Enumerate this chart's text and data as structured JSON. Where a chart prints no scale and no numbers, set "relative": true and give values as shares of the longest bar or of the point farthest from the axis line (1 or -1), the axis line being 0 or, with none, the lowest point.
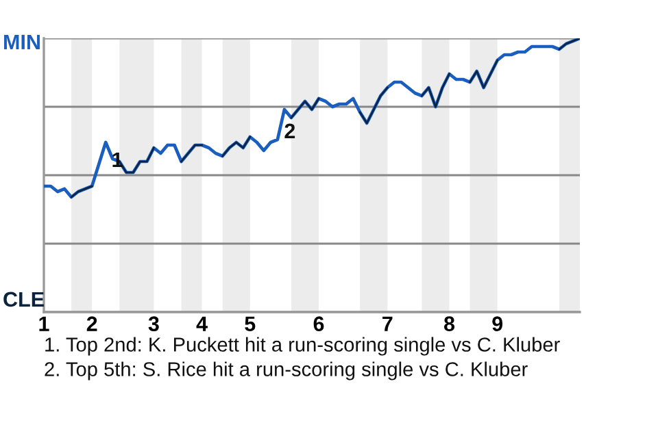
{
  "chart_data": {
    "type": "line",
    "relative": true,
    "categories": [
      "1",
      null,
      null,
      null,
      null,
      null,
      null,
      "2",
      null,
      null,
      null,
      null,
      null,
      null,
      null,
      null,
      "3",
      null,
      null,
      null,
      null,
      null,
      null,
      "4",
      null,
      null,
      null,
      null,
      null,
      null,
      "5",
      null,
      null,
      null,
      null,
      null,
      null,
      null,
      null,
      null,
      "6",
      null,
      null,
      null,
      null,
      null,
      null,
      null,
      null,
      null,
      "7",
      null,
      null,
      null,
      null,
      null,
      null,
      null,
      null,
      "8",
      null,
      null,
      null,
      null,
      null,
      null,
      "9",
      null,
      null,
      null,
      null,
      null,
      null,
      null,
      null,
      null,
      null,
      null,
      null
    ],
    "series": [
      {
        "color": "#1a5fc0",
        "values": [
          0.46,
          0.46,
          0.44,
          0.45,
          0.42,
          0.44,
          0.45,
          0.46,
          0.54,
          0.62,
          0.56,
          0.55,
          0.51,
          0.51,
          0.55,
          0.55,
          0.6,
          0.58,
          0.61,
          0.61,
          0.55,
          0.58,
          0.61,
          0.61,
          0.6,
          0.58,
          0.57,
          0.6,
          0.62,
          0.6,
          0.64,
          0.62,
          0.59,
          0.62,
          0.63,
          0.74,
          0.71,
          0.74,
          0.77,
          0.74,
          0.78,
          0.77,
          0.75,
          0.76,
          0.76,
          0.78,
          0.73,
          0.69,
          0.74,
          0.79,
          0.82,
          0.84,
          0.84,
          0.82,
          0.8,
          0.79,
          0.82,
          0.75,
          0.82,
          0.87,
          0.85,
          0.85,
          0.84,
          0.88,
          0.82,
          0.87,
          0.92,
          0.94,
          0.94,
          0.95,
          0.95,
          0.97,
          0.97,
          0.97,
          0.97,
          0.96,
          0.98,
          0.99,
          1.0
        ]
      },
      {
        "color": "#0c2340",
        "values": [
          null,
          null,
          null,
          null,
          0.42,
          0.44,
          0.45,
          0.46,
          null,
          null,
          null,
          0.55,
          0.51,
          0.51,
          0.55,
          0.55,
          0.6,
          null,
          null,
          null,
          0.55,
          0.58,
          0.61,
          0.61,
          null,
          null,
          0.57,
          0.6,
          0.62,
          0.6,
          0.64,
          null,
          null,
          null,
          null,
          null,
          0.71,
          0.74,
          0.77,
          0.74,
          0.78,
          null,
          null,
          null,
          null,
          null,
          0.73,
          0.69,
          0.74,
          0.79,
          0.82,
          null,
          null,
          null,
          null,
          0.79,
          0.82,
          0.75,
          0.82,
          0.87,
          null,
          null,
          0.84,
          0.88,
          0.82,
          0.87,
          0.92,
          null,
          null,
          null,
          null,
          null,
          null,
          null,
          null,
          0.96,
          0.98,
          0.99,
          1.0
        ]
      }
    ],
    "annotations": [
      "MIN",
      "CLE",
      "1",
      "2",
      "1. Top 2nd: K. Puckett hit a run-scoring single vs C. Kluber",
      "2. Top 5th: S. Rice hit a run-scoring single vs C. Kluber"
    ],
    "grid": "y",
    "marker": "none",
    "line_style": "solid"
  }
}
